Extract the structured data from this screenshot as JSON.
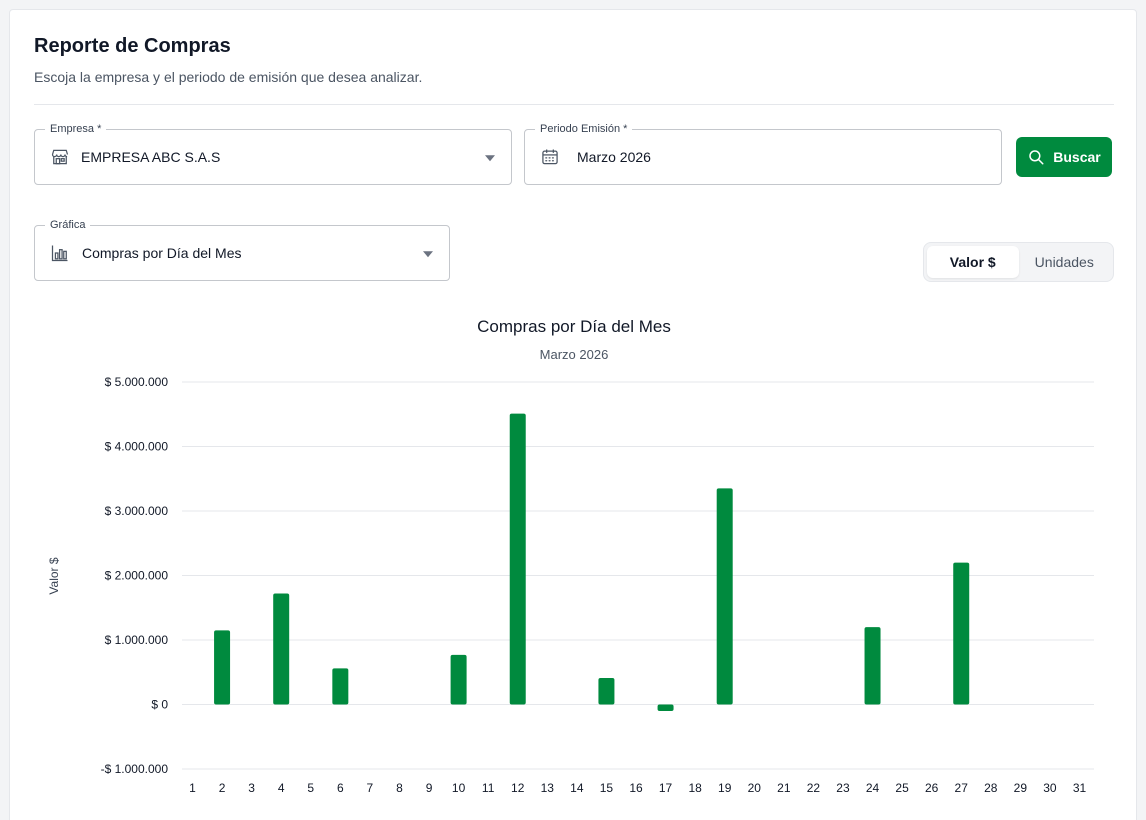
{
  "header": {
    "title": "Reporte de Compras",
    "subtitle": "Escoja la empresa y el periodo de emisión que desea analizar."
  },
  "filters": {
    "empresa": {
      "label": "Empresa",
      "required_mark": "*",
      "value": "EMPRESA ABC S.A.S",
      "icon": "store-icon"
    },
    "periodo": {
      "label": "Periodo Emisión",
      "required_mark": "*",
      "value": "Marzo 2026",
      "icon": "calendar-icon"
    },
    "grafica": {
      "label": "Gráfica",
      "value": "Compras por Día del Mes",
      "icon": "bar-chart-icon"
    },
    "search_button": {
      "label": "Buscar",
      "icon": "search-icon"
    }
  },
  "toggle": {
    "options": [
      "Valor $",
      "Unidades"
    ],
    "selected": "Valor $"
  },
  "colors": {
    "primary": "#008a3e",
    "bar": "#008a3e",
    "grid": "#e5e7eb"
  },
  "chart_data": {
    "type": "bar",
    "title": "Compras por Día del Mes",
    "subtitle": "Marzo 2026",
    "xlabel": "",
    "ylabel": "Valor $",
    "ylim": [
      -1000000,
      5000000
    ],
    "yticks": [
      5000000,
      4000000,
      3000000,
      2000000,
      1000000,
      0,
      -1000000
    ],
    "ytick_labels": [
      "$ 5.000.000",
      "$ 4.000.000",
      "$ 3.000.000",
      "$ 2.000.000",
      "$ 1.000.000",
      "$ 0",
      "-$ 1.000.000"
    ],
    "grid": true,
    "legend": "none",
    "categories": [
      "1",
      "2",
      "3",
      "4",
      "5",
      "6",
      "7",
      "8",
      "9",
      "10",
      "11",
      "12",
      "13",
      "14",
      "15",
      "16",
      "17",
      "18",
      "19",
      "20",
      "21",
      "22",
      "23",
      "24",
      "25",
      "26",
      "27",
      "28",
      "29",
      "30",
      "31"
    ],
    "values": [
      0,
      1150000,
      0,
      1720000,
      0,
      560000,
      0,
      0,
      0,
      770000,
      0,
      4510000,
      0,
      0,
      410000,
      0,
      -100000,
      0,
      3350000,
      0,
      0,
      0,
      0,
      1200000,
      0,
      0,
      2200000,
      0,
      0,
      0,
      0
    ]
  }
}
